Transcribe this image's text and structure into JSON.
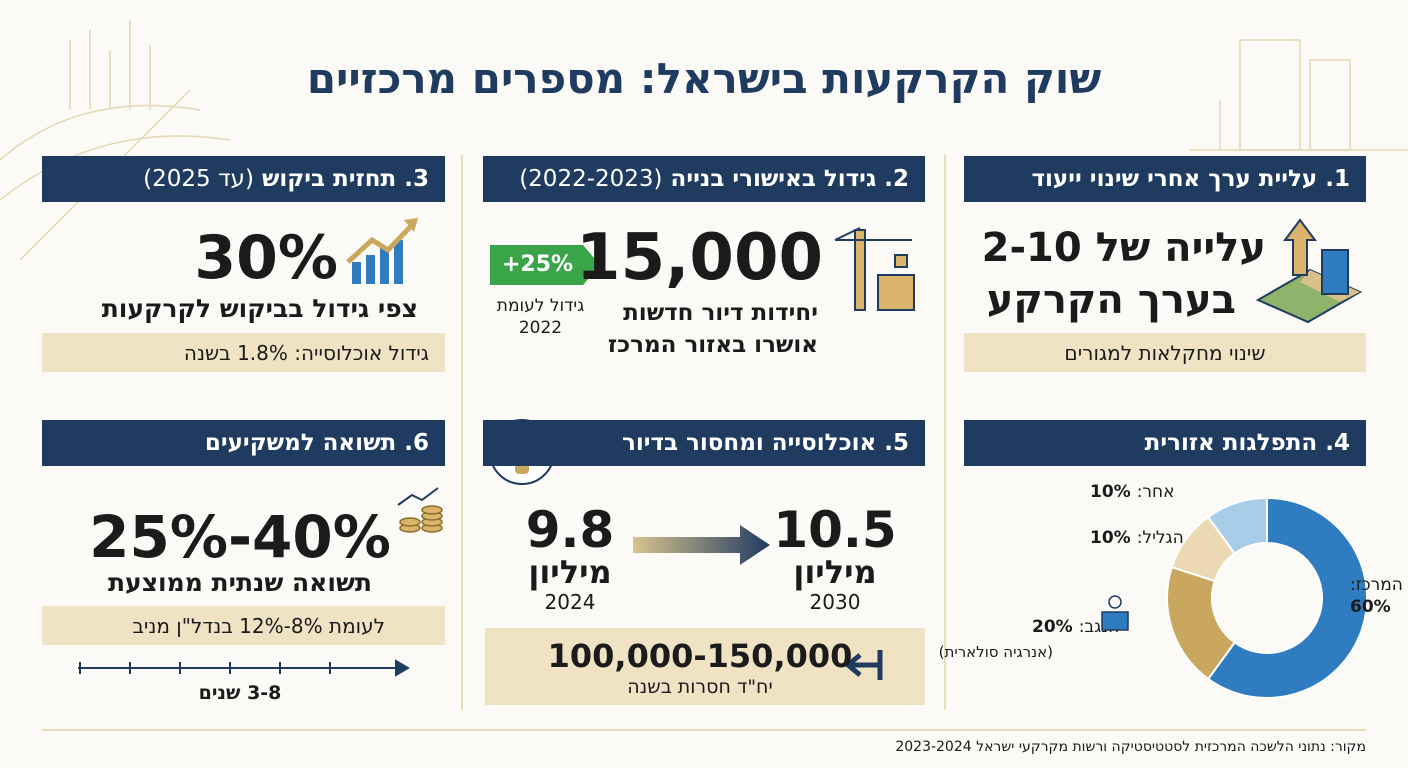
{
  "title": "שוק הקרקעות בישראל: מספרים מרכזיים",
  "panels": [
    {
      "header": "1. עליית ערך אחרי שינוי ייעוד",
      "headline": "עלייה של 2-10",
      "headline2": "בערך הקרקע",
      "footer": "שינוי מחקלאות למגורים"
    },
    {
      "header": "2. גידול באישורי בנייה",
      "header_note": "(2022-2023)",
      "big": "15,000",
      "text1": "יחידות דיור חדשות",
      "text2": "אושרו באזור המרכז",
      "badge": "+25%",
      "badge_note": "גידול לעומת",
      "badge_year": "2022"
    },
    {
      "header": "3. תחזית ביקוש",
      "header_note": "(עד 2025)",
      "big": "30%",
      "text": "צפי גידול בביקוש לקרקעות",
      "footer": "גידול אוכלוסייה: 1.8% בשנה"
    },
    {
      "header": "4. התפלגות אזורית",
      "note": "(אנרגיה סולארית)"
    },
    {
      "header": "5. אוכלוסייה ומחסור בדיור",
      "from_value": "9.8",
      "from_unit": "מיליון",
      "from_year": "2024",
      "to_value": "10.5",
      "to_unit": "מיליון",
      "to_year": "2030",
      "shortage": "100,000-150,000",
      "shortage_note": "יח\"ד חסרות בשנה"
    },
    {
      "header": "6. תשואה למשקיעים",
      "big": "25%-40%",
      "text": "תשואה שנתית ממוצעת",
      "footer": "לעומת 8%-12% בנדל\"ן מניב",
      "timeline": "3-8 שנים"
    }
  ],
  "chart_data": {
    "type": "pie",
    "donut": true,
    "categories": [
      "המרכז:",
      "הנגב:",
      "הגליל:",
      "אחר:"
    ],
    "values": [
      60,
      20,
      10,
      10
    ],
    "value_labels": [
      "60%",
      "20%",
      "10%",
      "10%"
    ],
    "colors": [
      "#2f7cc0",
      "#c9a75e",
      "#ead9b2",
      "#a8cde8"
    ]
  },
  "source": "מקור: נתוני הלשכה המרכזית לסטטיסטיקה ורשות מקרקעי ישראל 2023-2024"
}
